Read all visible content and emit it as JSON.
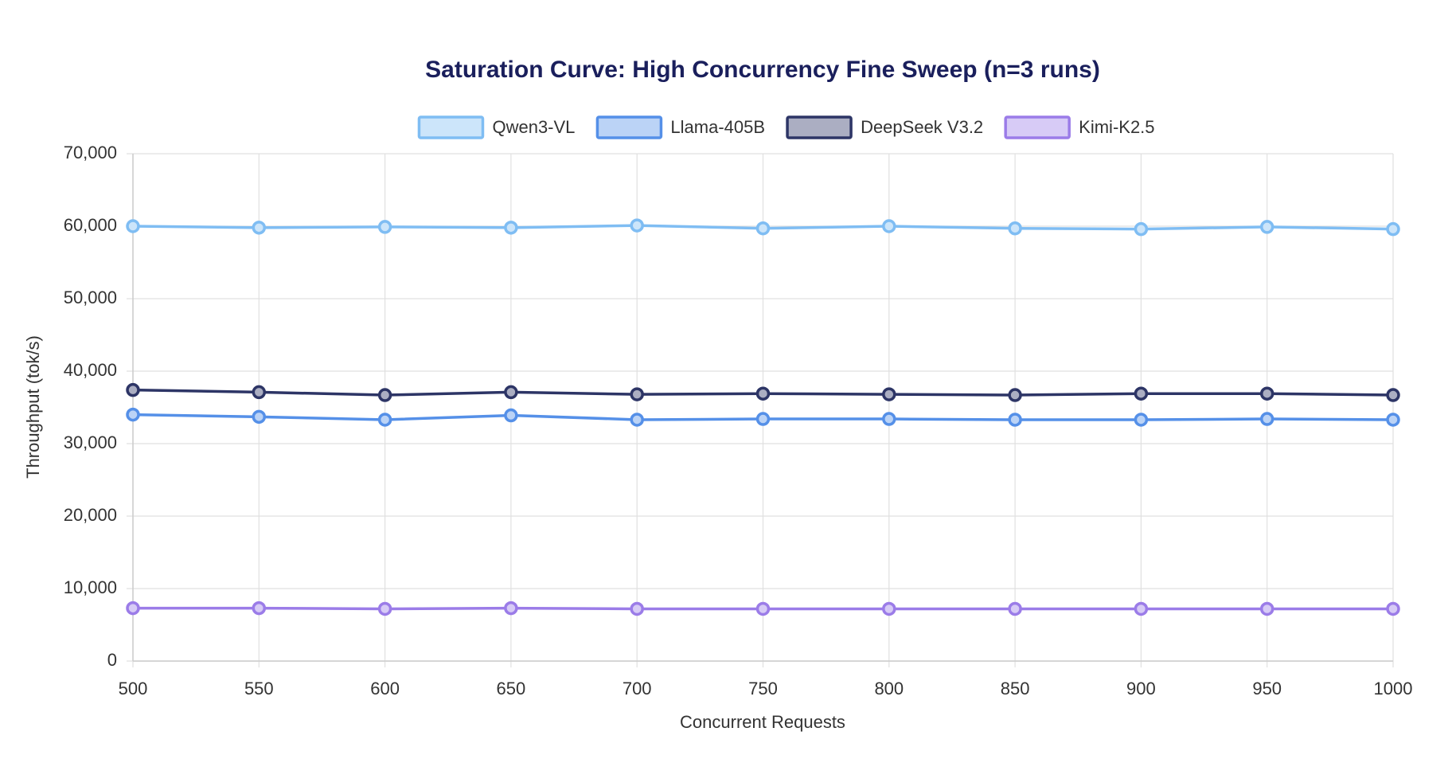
{
  "chart_data": {
    "type": "line",
    "title": "Saturation Curve: High Concurrency Fine Sweep (n=3 runs)",
    "x_label": "Concurrent Requests",
    "y_label": "Throughput (tok/s)",
    "x": [
      500,
      550,
      600,
      650,
      700,
      750,
      800,
      850,
      900,
      950,
      1000
    ],
    "xlim": [
      500,
      1000
    ],
    "xticks": [
      500,
      550,
      600,
      650,
      700,
      750,
      800,
      850,
      900,
      950,
      1000
    ],
    "ylim": [
      0,
      70000
    ],
    "yticks": [
      0,
      {
        "value": 10000,
        "label": "10,000"
      },
      {
        "value": 20000,
        "label": "20,000"
      },
      {
        "value": 30000,
        "label": "30,000"
      },
      {
        "value": 40000,
        "label": "40,000"
      },
      {
        "value": 50000,
        "label": "50,000"
      },
      {
        "value": 60000,
        "label": "60,000"
      },
      {
        "value": 70000,
        "label": "70,000"
      }
    ],
    "grid": true,
    "legend": "top",
    "series": [
      {
        "name": "Qwen3-VL",
        "color": "#7fbdf3",
        "values": [
          60000,
          59800,
          59900,
          59800,
          60100,
          59700,
          60000,
          59700,
          59600,
          59900,
          59600
        ]
      },
      {
        "name": "Llama-405B",
        "color": "#5590e8",
        "values": [
          34000,
          33700,
          33300,
          33900,
          33300,
          33400,
          33400,
          33300,
          33300,
          33400,
          33300
        ]
      },
      {
        "name": "DeepSeek V3.2",
        "color": "#2d3566",
        "values": [
          37400,
          37100,
          36700,
          37100,
          36800,
          36900,
          36800,
          36700,
          36900,
          36900,
          36700
        ]
      },
      {
        "name": "Kimi-K2.5",
        "color": "#9b7ce8",
        "values": [
          7300,
          7300,
          7200,
          7300,
          7200,
          7200,
          7200,
          7200,
          7200,
          7200,
          7200
        ]
      }
    ]
  }
}
